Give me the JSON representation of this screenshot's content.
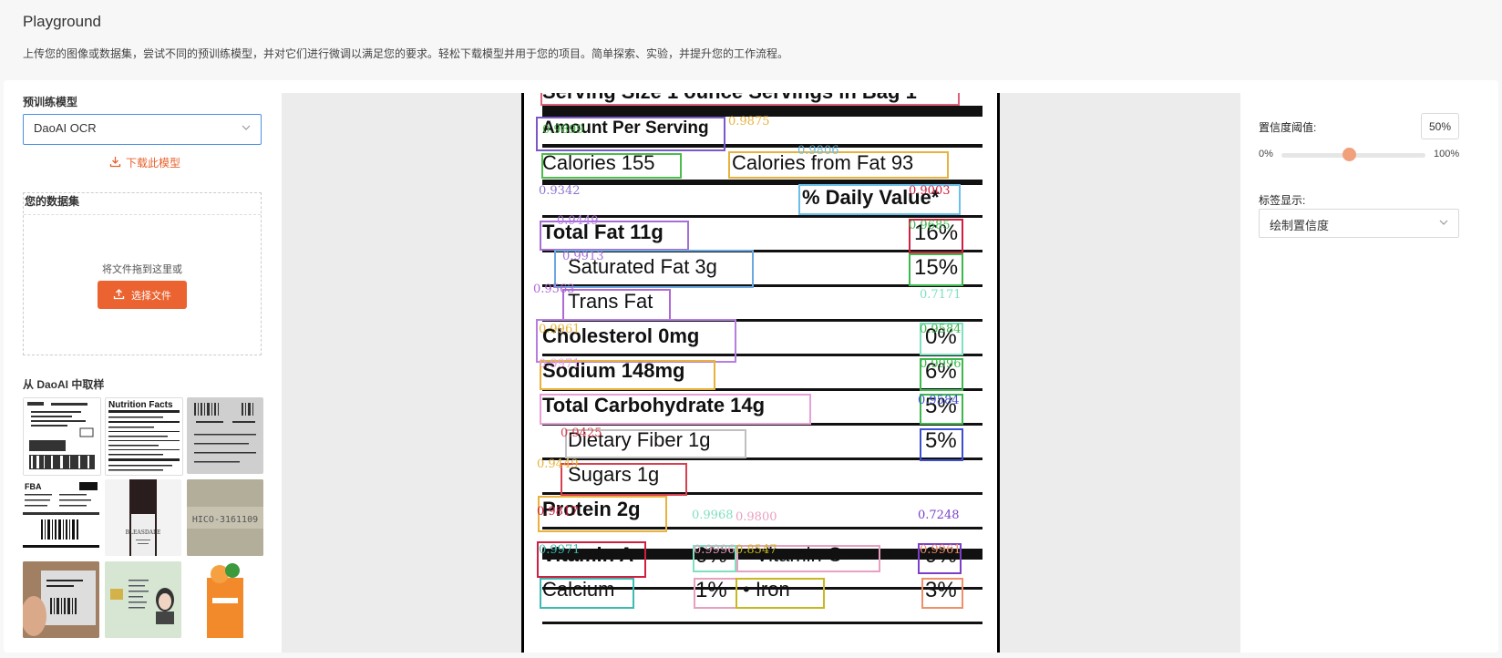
{
  "header": {
    "title": "Playground",
    "description": "上传您的图像或数据集，尝试不同的预训练模型，并对它们进行微调以满足您的要求。轻松下载模型并用于您的项目。简单探索、实验，并提升您的工作流程。"
  },
  "left_panel": {
    "model_label": "预训练模型",
    "model_value": "DaoAI OCR",
    "download_label": "下载此模型",
    "dataset_label": "您的数据集",
    "drag_hint": "将文件拖到这里或",
    "choose_file_label": "选择文件",
    "samples_label": "从 DaoAI 中取样"
  },
  "right_panel": {
    "confidence_label": "置信度阈值:",
    "confidence_value": "50%",
    "confidence_fraction": 0.5,
    "min_label": "0%",
    "max_label": "100%",
    "label_display_label": "标签显示:",
    "label_display_value": "绘制置信度"
  },
  "viewer": {
    "nutrition_lines": {
      "serving": "Serving Size 1 ounce Servings in Bag 1",
      "amount": "Amount Per Serving",
      "calories": "Calories 155",
      "calories_fat": "Calories from Fat 93",
      "daily_value": "% Daily Value*",
      "total_fat": "Total Fat 11g",
      "total_fat_pct": "16%",
      "sat_fat": "Saturated Fat 3g",
      "sat_fat_pct": "15%",
      "trans_fat": "Trans Fat",
      "cholesterol": "Cholesterol 0mg",
      "cholesterol_pct": "0%",
      "sodium": "Sodium 148mg",
      "sodium_pct": "6%",
      "carb": "Total Carbohydrate 14g",
      "carb_pct": "5%",
      "fiber": "Dietary Fiber 1g",
      "fiber_pct": "5%",
      "sugars": "Sugars 1g",
      "protein": "Protein 2g",
      "vita": "Vitamin A",
      "vita_pct": "0%",
      "vitc": "• Vitamin C",
      "vitc_pct": "9%",
      "calcium": "Calcium",
      "calcium_pct": "1%",
      "iron": "• Iron",
      "iron_pct": "3%"
    },
    "confidences": {
      "c1": "0.9875",
      "c2": "0.9806",
      "c3": "0.9342",
      "c4": "0.9003",
      "c5": "0.9449",
      "c6": "0.7171",
      "c7": "0.9968",
      "c8": "0.9800",
      "c9": "0.7248",
      "c10": "0.8547",
      "c11": "0.9899",
      "c12": "0.9685",
      "c13": "0.9913",
      "c14": "0.9425",
      "c15": "0.9817",
      "c16": "0.9563",
      "c17": "0.9961",
      "c18": "0.9584",
      "c19": "0.9971",
      "c20": "0.9996"
    }
  },
  "colors": {
    "accent": "#ea6330",
    "focus": "#4a90e2",
    "slider_thumb": "#f0a07a"
  }
}
